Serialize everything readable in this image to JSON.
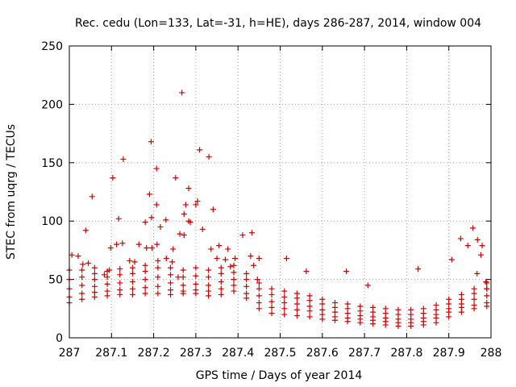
{
  "chart_data": {
    "type": "scatter",
    "title": "Rec. cedu (Lon=133, Lat=-31, h=HE), days 286-287, 2014, window 004",
    "xlabel": "GPS time / Days of year 2014",
    "ylabel": "STEC from uqrg / TECUs",
    "xlim": [
      287,
      288
    ],
    "ylim": [
      0,
      250
    ],
    "xticks": [
      287,
      287.1,
      287.2,
      287.3,
      287.4,
      287.5,
      287.6,
      287.7,
      287.8,
      287.9,
      288
    ],
    "xtick_labels": [
      "287",
      "287.1",
      "287.2",
      "287.3",
      "287.4",
      "287.5",
      "287.6",
      "287.7",
      "287.8",
      "287.9",
      "288"
    ],
    "yticks": [
      0,
      50,
      100,
      150,
      200,
      250
    ],
    "ytick_labels": [
      "0",
      "50",
      "100",
      "150",
      "200",
      "250"
    ],
    "grid": true,
    "marker": "+",
    "color": "#cc0000",
    "outliers": [
      [
        287.054,
        121
      ],
      [
        287.103,
        137
      ],
      [
        287.117,
        102
      ],
      [
        287.128,
        153
      ],
      [
        287.194,
        168
      ],
      [
        287.207,
        145
      ],
      [
        287.252,
        137
      ],
      [
        287.267,
        210
      ],
      [
        287.309,
        161
      ],
      [
        287.331,
        155
      ],
      [
        287.283,
        128
      ],
      [
        287.304,
        117
      ],
      [
        287.19,
        123
      ],
      [
        287.207,
        114
      ],
      [
        287.276,
        114
      ],
      [
        287.3,
        114
      ],
      [
        287.341,
        110
      ],
      [
        287.229,
        101
      ],
      [
        287.272,
        106
      ],
      [
        287.283,
        100
      ],
      [
        287.216,
        95
      ],
      [
        287.18,
        99
      ],
      [
        287.195,
        103
      ],
      [
        287.039,
        92
      ],
      [
        287.165,
        80
      ],
      [
        287.183,
        77
      ],
      [
        287.196,
        77
      ],
      [
        287.208,
        80
      ],
      [
        287.246,
        76
      ],
      [
        287.262,
        89
      ],
      [
        287.272,
        88
      ],
      [
        287.287,
        99
      ],
      [
        287.316,
        93
      ],
      [
        287.336,
        76
      ],
      [
        287.355,
        79
      ],
      [
        287.376,
        76
      ],
      [
        287.393,
        68
      ],
      [
        287.411,
        88
      ],
      [
        287.433,
        90
      ],
      [
        287.43,
        70
      ],
      [
        287.45,
        68
      ],
      [
        287.515,
        68
      ],
      [
        287.562,
        57
      ],
      [
        287.657,
        57
      ],
      [
        287.708,
        45
      ],
      [
        287.827,
        59
      ],
      [
        287.907,
        67
      ],
      [
        287.928,
        85
      ],
      [
        287.945,
        79
      ],
      [
        287.957,
        94
      ],
      [
        287.968,
        84
      ],
      [
        287.979,
        79
      ],
      [
        287.967,
        55
      ],
      [
        287.976,
        71
      ],
      [
        287.99,
        42
      ],
      [
        287.988,
        48
      ],
      [
        287.112,
        80
      ],
      [
        287.126,
        81
      ],
      [
        287.098,
        77
      ],
      [
        287.143,
        66
      ],
      [
        287.155,
        65
      ],
      [
        287.006,
        71
      ],
      [
        287.021,
        70
      ],
      [
        287.032,
        63
      ],
      [
        287.045,
        64
      ],
      [
        287.06,
        60
      ],
      [
        287.083,
        54
      ],
      [
        287.095,
        58
      ],
      [
        287.23,
        68
      ],
      [
        287.244,
        65
      ],
      [
        287.258,
        52
      ],
      [
        287.35,
        68
      ],
      [
        287.37,
        67
      ],
      [
        287.382,
        61
      ],
      [
        287.437,
        62
      ],
      [
        287.446,
        50
      ]
    ],
    "series": [
      {
        "x": [
          287,
          287.03,
          287.06,
          287.09,
          287.12,
          287.15,
          287.18,
          287.21,
          287.24,
          287.27,
          287.3,
          287.33,
          287.36,
          287.39,
          287.42,
          287.45,
          287.48,
          287.51,
          287.54,
          287.57,
          287.6,
          287.63,
          287.66,
          287.69,
          287.72,
          287.75,
          287.78,
          287.81,
          287.84,
          287.87,
          287.9,
          287.93,
          287.96,
          287.99
        ],
        "y": [
          30,
          33,
          35,
          36,
          37,
          37,
          38,
          38,
          37,
          38,
          38,
          36,
          37,
          40,
          34,
          25,
          21,
          20,
          19,
          18,
          16,
          15,
          14,
          13,
          12,
          11,
          10,
          10,
          11,
          13,
          18,
          22,
          25,
          27
        ]
      },
      {
        "x": [
          287,
          287.03,
          287.06,
          287.09,
          287.12,
          287.15,
          287.18,
          287.21,
          287.24,
          287.27,
          287.3,
          287.33,
          287.36,
          287.39,
          287.42,
          287.45,
          287.48,
          287.51,
          287.54,
          287.57,
          287.6,
          287.63,
          287.66,
          287.69,
          287.72,
          287.75,
          287.78,
          287.81,
          287.84,
          287.87,
          287.9,
          287.93,
          287.96,
          287.99
        ],
        "y": [
          35,
          38,
          39,
          40,
          41,
          42,
          43,
          44,
          41,
          40,
          41,
          40,
          42,
          45,
          38,
          30,
          26,
          25,
          24,
          23,
          20,
          18,
          17,
          16,
          15,
          14,
          13,
          13,
          14,
          17,
          22,
          26,
          28,
          30
        ]
      },
      {
        "x": [
          287,
          287.03,
          287.06,
          287.09,
          287.12,
          287.15,
          287.18,
          287.21,
          287.24,
          287.27,
          287.3,
          287.33,
          287.36,
          287.39,
          287.42,
          287.45,
          287.48,
          287.51,
          287.54,
          287.57,
          287.6,
          287.63,
          287.66,
          287.69,
          287.72,
          287.75,
          287.78,
          287.81,
          287.84,
          287.87,
          287.9,
          287.93,
          287.96,
          287.99
        ],
        "y": [
          42,
          45,
          44,
          46,
          47,
          48,
          50,
          52,
          47,
          45,
          46,
          45,
          48,
          50,
          44,
          36,
          31,
          30,
          29,
          27,
          24,
          22,
          21,
          19,
          18,
          17,
          16,
          16,
          17,
          20,
          25,
          29,
          33,
          36
        ]
      },
      {
        "x": [
          287,
          287.03,
          287.06,
          287.09,
          287.12,
          287.15,
          287.18,
          287.21,
          287.24,
          287.27,
          287.3,
          287.33,
          287.36,
          287.39,
          287.42,
          287.45,
          287.48,
          287.51,
          287.54,
          287.57,
          287.6,
          287.63,
          287.66,
          287.69,
          287.72,
          287.75,
          287.78,
          287.81,
          287.84,
          287.87,
          287.9,
          287.93,
          287.96,
          287.99
        ],
        "y": [
          50,
          52,
          50,
          52,
          54,
          55,
          57,
          60,
          54,
          52,
          53,
          52,
          55,
          56,
          50,
          42,
          37,
          35,
          34,
          32,
          29,
          26,
          25,
          23,
          22,
          21,
          20,
          20,
          21,
          24,
          29,
          33,
          38,
          42
        ]
      },
      {
        "x": [
          287,
          287.03,
          287.06,
          287.09,
          287.12,
          287.15,
          287.18,
          287.21,
          287.24,
          287.27,
          287.3,
          287.33,
          287.36,
          287.39,
          287.42,
          287.45,
          287.48,
          287.51,
          287.54,
          287.57,
          287.6,
          287.63,
          287.66,
          287.69,
          287.72,
          287.75,
          287.78,
          287.81,
          287.84,
          287.87,
          287.9,
          287.93,
          287.96,
          287.99
        ],
        "y": [
          58,
          58,
          55,
          57,
          59,
          60,
          62,
          66,
          60,
          58,
          60,
          58,
          60,
          62,
          55,
          47,
          42,
          40,
          38,
          36,
          33,
          30,
          29,
          27,
          26,
          25,
          24,
          24,
          25,
          28,
          33,
          37,
          42,
          47
        ]
      }
    ]
  }
}
